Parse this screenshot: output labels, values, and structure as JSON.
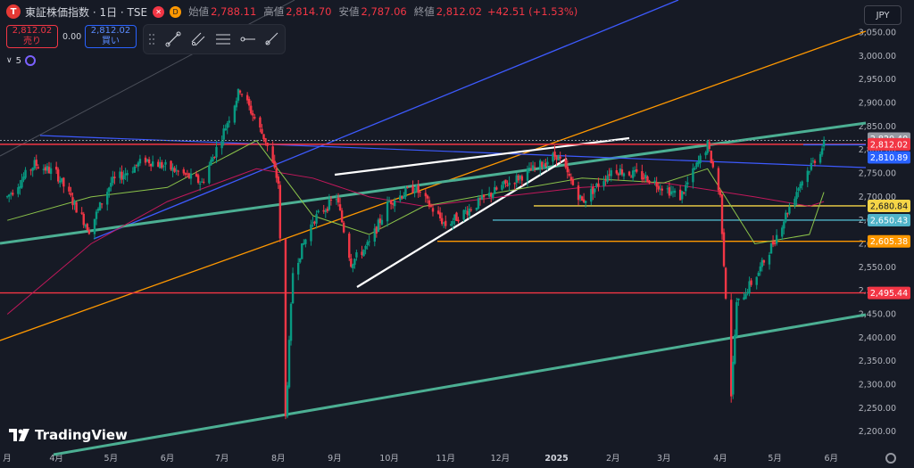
{
  "header": {
    "icon_letter": "T",
    "title": "東証株価指数 · 1日 · TSE",
    "open_label": "始値",
    "open_value": "2,788.11",
    "high_label": "高値",
    "high_value": "2,814.70",
    "low_label": "安値",
    "low_value": "2,787.06",
    "close_label": "終値",
    "close_value": "2,812.02",
    "change": "+42.51 (+1.53%)",
    "d_badge": "D"
  },
  "trade": {
    "sell_price": "2,812.02",
    "sell_label": "売り",
    "spread": "0.00",
    "buy_price": "2,812.02",
    "buy_label": "買い"
  },
  "indicator_row": {
    "count": "5"
  },
  "currency": "JPY",
  "logo_text": "TradingView",
  "chart_data": {
    "type": "candlestick",
    "y_range": [
      2170,
      3070
    ],
    "y_ticks": [
      2200,
      2250,
      2300,
      2350,
      2400,
      2450,
      2500,
      2550,
      2600,
      2650,
      2700,
      2750,
      2800,
      2850,
      2900,
      2950,
      3000,
      3050
    ],
    "y_tick_labels": [
      "2,200.00",
      "2,250.00",
      "2,300.00",
      "2,350.00",
      "2,400.00",
      "2,450.00",
      "2,500.00",
      "2,550.00",
      "2,600.00",
      "2,650.00",
      "2,700.00",
      "2,750.00",
      "2,800.00",
      "2,850.00",
      "2,900.00",
      "2,950.00",
      "3,000.00",
      "3,050.00"
    ],
    "x_labels": [
      {
        "label": "月",
        "month": "2024-03"
      },
      {
        "label": "4月",
        "month": "2024-04"
      },
      {
        "label": "5月",
        "month": "2024-05"
      },
      {
        "label": "6月",
        "month": "2024-06"
      },
      {
        "label": "7月",
        "month": "2024-07"
      },
      {
        "label": "8月",
        "month": "2024-08"
      },
      {
        "label": "9月",
        "month": "2024-09"
      },
      {
        "label": "10月",
        "month": "2024-10"
      },
      {
        "label": "11月",
        "month": "2024-11"
      },
      {
        "label": "12月",
        "month": "2024-12"
      },
      {
        "label": "2025",
        "month": "2025-01"
      },
      {
        "label": "2月",
        "month": "2025-02"
      },
      {
        "label": "3月",
        "month": "2025-03"
      },
      {
        "label": "4月",
        "month": "2025-04"
      },
      {
        "label": "5月",
        "month": "2025-05"
      },
      {
        "label": "6月",
        "month": "2025-06"
      }
    ],
    "price_path": [
      [
        "2024-03-05",
        2700
      ],
      [
        "2024-03-20",
        2770
      ],
      [
        "2024-04-01",
        2750
      ],
      [
        "2024-04-19",
        2630
      ],
      [
        "2024-05-01",
        2730
      ],
      [
        "2024-05-20",
        2780
      ],
      [
        "2024-06-03",
        2760
      ],
      [
        "2024-06-20",
        2730
      ],
      [
        "2024-07-01",
        2830
      ],
      [
        "2024-07-11",
        2930
      ],
      [
        "2024-07-25",
        2820
      ],
      [
        "2024-08-01",
        2730
      ],
      [
        "2024-08-05",
        2230
      ],
      [
        "2024-08-09",
        2540
      ],
      [
        "2024-08-20",
        2650
      ],
      [
        "2024-09-02",
        2700
      ],
      [
        "2024-09-10",
        2560
      ],
      [
        "2024-09-20",
        2600
      ],
      [
        "2024-10-01",
        2690
      ],
      [
        "2024-10-15",
        2720
      ],
      [
        "2024-11-01",
        2640
      ],
      [
        "2024-11-20",
        2690
      ],
      [
        "2024-12-01",
        2720
      ],
      [
        "2024-12-20",
        2760
      ],
      [
        "2025-01-01",
        2790
      ],
      [
        "2025-01-15",
        2690
      ],
      [
        "2025-02-01",
        2760
      ],
      [
        "2025-02-20",
        2740
      ],
      [
        "2025-03-10",
        2700
      ],
      [
        "2025-03-25",
        2810
      ],
      [
        "2025-04-01",
        2700
      ],
      [
        "2025-04-07",
        2280
      ],
      [
        "2025-04-10",
        2470
      ],
      [
        "2025-04-22",
        2540
      ],
      [
        "2025-05-01",
        2610
      ],
      [
        "2025-05-15",
        2730
      ],
      [
        "2025-05-28",
        2812
      ]
    ],
    "ma_short": [
      [
        "2024-03-05",
        2650
      ],
      [
        "2024-04-20",
        2700
      ],
      [
        "2024-06-01",
        2720
      ],
      [
        "2024-07-20",
        2820
      ],
      [
        "2024-08-20",
        2660
      ],
      [
        "2024-09-20",
        2620
      ],
      [
        "2024-10-20",
        2680
      ],
      [
        "2024-12-01",
        2710
      ],
      [
        "2025-01-15",
        2740
      ],
      [
        "2025-03-01",
        2730
      ],
      [
        "2025-03-25",
        2760
      ],
      [
        "2025-04-20",
        2600
      ],
      [
        "2025-05-20",
        2620
      ],
      [
        "2025-05-28",
        2710
      ]
    ],
    "ma_long": [
      [
        "2024-03-05",
        2450
      ],
      [
        "2024-04-20",
        2600
      ],
      [
        "2024-06-01",
        2690
      ],
      [
        "2024-07-20",
        2760
      ],
      [
        "2024-08-20",
        2740
      ],
      [
        "2024-09-20",
        2700
      ],
      [
        "2024-10-20",
        2680
      ],
      [
        "2024-12-01",
        2700
      ],
      [
        "2025-01-15",
        2720
      ],
      [
        "2025-03-01",
        2730
      ],
      [
        "2025-04-20",
        2700
      ],
      [
        "2025-05-20",
        2680
      ],
      [
        "2025-05-28",
        2690
      ]
    ],
    "horizontal_levels": [
      {
        "value": 2820.4,
        "label": "2,820.40",
        "color": "#9598a1"
      },
      {
        "value": 2812.02,
        "label": "2,812.02",
        "color": "#f23645"
      },
      {
        "value": 2810.89,
        "label": "2,810.89",
        "color": "#2962ff"
      },
      {
        "value": 2680.84,
        "label": "2,680.84",
        "color": "#f5d547"
      },
      {
        "value": 2650.43,
        "label": "2,650.43",
        "color": "#4fb3c8"
      },
      {
        "value": 2605.38,
        "label": "2,605.38",
        "color": "#ff9800"
      },
      {
        "value": 2495.44,
        "label": "2,495.44",
        "color": "#f23645"
      }
    ],
    "colors": {
      "up": "#089981",
      "down": "#f23645",
      "ma_short": "#8bc34a",
      "ma_long": "#c2185b"
    }
  }
}
